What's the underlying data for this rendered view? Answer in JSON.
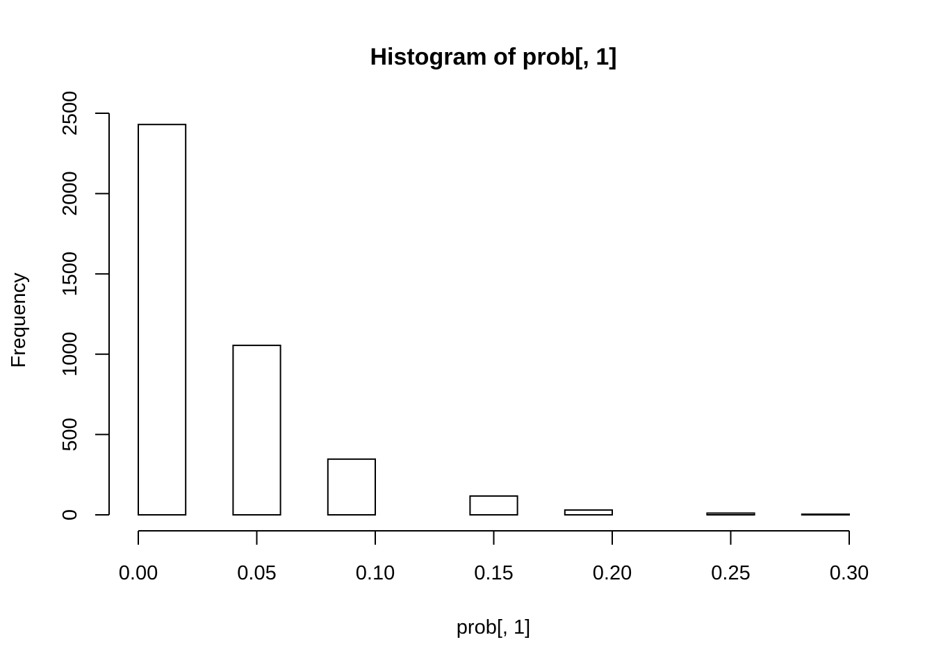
{
  "chart_data": {
    "type": "bar",
    "title": "Histogram of prob[, 1]",
    "xlabel": "prob[, 1]",
    "ylabel": "Frequency",
    "xlim": [
      0,
      0.3
    ],
    "ylim": [
      0,
      2500
    ],
    "x_ticks": [
      "0.00",
      "0.05",
      "0.10",
      "0.15",
      "0.20",
      "0.25",
      "0.30"
    ],
    "y_ticks": [
      "0",
      "500",
      "1000",
      "1500",
      "2000",
      "2500"
    ],
    "grid": false,
    "bins": [
      {
        "x0": 0.0,
        "x1": 0.02,
        "count": 2430
      },
      {
        "x0": 0.04,
        "x1": 0.06,
        "count": 1055
      },
      {
        "x0": 0.08,
        "x1": 0.1,
        "count": 347
      },
      {
        "x0": 0.12,
        "x1": 0.14,
        "count": 0
      },
      {
        "x0": 0.14,
        "x1": 0.16,
        "count": 117
      },
      {
        "x0": 0.18,
        "x1": 0.2,
        "count": 30
      },
      {
        "x0": 0.24,
        "x1": 0.26,
        "count": 11
      },
      {
        "x0": 0.28,
        "x1": 0.3,
        "count": 4
      }
    ],
    "colors": {
      "bar_fill": "#ffffff",
      "bar_stroke": "#000000",
      "background": "#ffffff"
    }
  }
}
